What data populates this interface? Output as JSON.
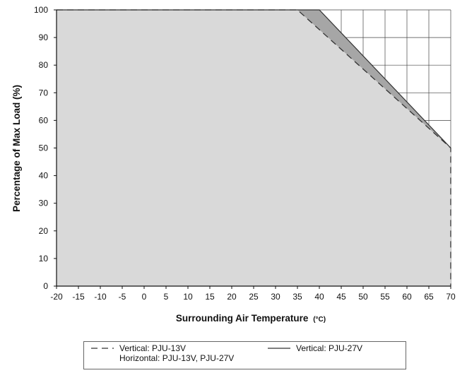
{
  "chart_data": {
    "type": "line",
    "title": "",
    "xlabel": "Surrounding Air Temperature",
    "xlabel_unit": "(°C)",
    "ylabel": "Percentage of Max Load (%)",
    "xlim": [
      -20,
      70
    ],
    "ylim": [
      0,
      100
    ],
    "x_ticks": [
      "-20",
      "-15",
      "-10",
      "-5",
      "0",
      "5",
      "10",
      "15",
      "20",
      "25",
      "30",
      "35",
      "40",
      "45",
      "50",
      "55",
      "60",
      "65",
      "70"
    ],
    "y_ticks": [
      "0",
      "10",
      "20",
      "30",
      "40",
      "50",
      "60",
      "70",
      "80",
      "90",
      "100"
    ],
    "grid": "shown only in the region above the derating curves",
    "legend_position": "bottom",
    "series": [
      {
        "name_lines": [
          "Vertical: PJU-13V",
          "Horizontal: PJU-13V, PJU-27V"
        ],
        "style": "dashed",
        "x": [
          -20,
          35,
          70
        ],
        "y": [
          100,
          100,
          50
        ]
      },
      {
        "name_lines": [
          "Vertical: PJU-27V"
        ],
        "style": "solid",
        "x": [
          -20,
          40,
          70
        ],
        "y": [
          100,
          100,
          50
        ]
      }
    ],
    "fill_below_dashed": "#d9d9d9",
    "fill_between_curves": "#a6a6a6",
    "line_color": "#333333"
  }
}
